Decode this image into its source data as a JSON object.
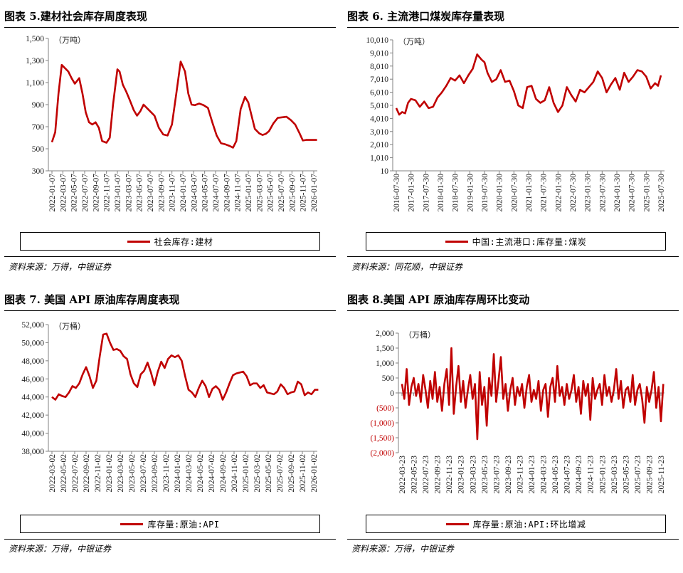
{
  "colors": {
    "series": "#c00000",
    "axis": "#808080",
    "negative": "#c00000"
  },
  "panels": [
    {
      "title": "图表 5.建材社会库存周度表现",
      "source": "资料来源：万得，中银证券",
      "legend": "社会库存:建材",
      "chart_data": {
        "type": "line",
        "unit": "（万吨）",
        "ylim": [
          300,
          1500
        ],
        "yticks": [
          "1,500",
          "1,300",
          "1,100",
          "900",
          "700",
          "500",
          "300"
        ],
        "ytick_values": [
          1500,
          1300,
          1100,
          900,
          700,
          500,
          300
        ],
        "categories": [
          "2022-01-07",
          "2022-03-07",
          "2022-05-07",
          "2022-07-07",
          "2022-09-07",
          "2022-11-07",
          "2023-01-07",
          "2023-03-07",
          "2023-05-07",
          "2023-07-07",
          "2023-09-07",
          "2023-11-07",
          "2024-01-07",
          "2024-03-07",
          "2024-05-07",
          "2024-07-07",
          "2024-09-07",
          "2024-11-07",
          "2025-01-07",
          "2025-03-07",
          "2025-05-07",
          "2025-07-07",
          "2025-09-07",
          "2025-11-07",
          "2026-01-07"
        ],
        "series": [
          {
            "name": "社会库存:建材",
            "x": [
              0,
              0.3,
              0.6,
              0.9,
              1.2,
              1.5,
              1.8,
              2.1,
              2.5,
              2.8,
              3.1,
              3.4,
              3.7,
              4,
              4.3,
              4.6,
              5,
              5.3,
              5.6,
              6,
              6.2,
              6.5,
              6.8,
              7.1,
              7.5,
              7.8,
              8.1,
              8.4,
              8.7,
              9,
              9.4,
              9.8,
              10.2,
              10.6,
              11,
              11.4,
              11.8,
              12.2,
              12.5,
              12.8,
              13.1,
              13.5,
              13.9,
              14.3,
              14.7,
              15.1,
              15.5,
              15.9,
              16.3,
              16.6,
              16.9,
              17.3,
              17.7,
              18,
              18.3,
              18.6,
              19,
              19.3,
              19.6,
              19.9,
              20.3,
              20.7,
              21.1,
              21.5,
              21.9,
              22.3,
              22.7,
              23,
              23.3,
              23.7,
              24,
              24.3
            ],
            "values": [
              560,
              650,
              1000,
              1260,
              1230,
              1200,
              1140,
              1090,
              1140,
              1000,
              830,
              740,
              720,
              740,
              690,
              570,
              555,
              600,
              900,
              1220,
              1200,
              1080,
              1020,
              950,
              850,
              800,
              840,
              900,
              870,
              840,
              800,
              690,
              630,
              620,
              720,
              1000,
              1290,
              1200,
              1000,
              900,
              895,
              910,
              895,
              870,
              740,
              620,
              550,
              540,
              525,
              510,
              570,
              860,
              970,
              920,
              800,
              680,
              640,
              625,
              635,
              660,
              730,
              780,
              785,
              790,
              760,
              720,
              640,
              575,
              580,
              580,
              580,
              580
            ]
          }
        ]
      }
    },
    {
      "title": "图表 6.  主流港口煤炭库存量表现",
      "source": "资料来源：同花顺，中银证券",
      "legend": "中国:主流港口:库存量:煤炭",
      "chart_data": {
        "type": "line",
        "unit": "（万吨）",
        "ylim": [
          10,
          10010
        ],
        "yticks": [
          "10,010",
          "9,010",
          "8,010",
          "7,010",
          "6,010",
          "5,010",
          "4,010",
          "3,010",
          "2,010",
          "1,010",
          "10"
        ],
        "ytick_values": [
          10010,
          9010,
          8010,
          7010,
          6010,
          5010,
          4010,
          3010,
          2010,
          1010,
          10
        ],
        "categories": [
          "2016-07-30",
          "2017-01-30",
          "2017-07-30",
          "2018-01-30",
          "2018-07-30",
          "2019-01-30",
          "2019-07-30",
          "2020-01-30",
          "2020-07-30",
          "2021-01-30",
          "2021-07-30",
          "2022-01-30",
          "2022-07-30",
          "2023-01-30",
          "2023-07-30",
          "2024-01-30",
          "2024-07-30",
          "2025-01-30",
          "2025-07-30"
        ],
        "series": [
          {
            "name": "中国:主流港口:库存量:煤炭",
            "x": [
              0,
              0.2,
              0.4,
              0.6,
              0.8,
              1.0,
              1.3,
              1.6,
              1.9,
              2.2,
              2.5,
              2.8,
              3.1,
              3.4,
              3.7,
              4.0,
              4.3,
              4.6,
              4.9,
              5.2,
              5.5,
              5.8,
              6.0,
              6.2,
              6.5,
              6.8,
              7.1,
              7.4,
              7.7,
              8.0,
              8.3,
              8.6,
              8.9,
              9.2,
              9.5,
              9.8,
              10.1,
              10.4,
              10.7,
              11.0,
              11.3,
              11.6,
              11.9,
              12.2,
              12.5,
              12.8,
              13.1,
              13.4,
              13.7,
              14.0,
              14.3,
              14.6,
              14.9,
              15.2,
              15.5,
              15.8,
              16.1,
              16.4,
              16.7,
              17.0,
              17.3,
              17.6,
              17.8,
              18.0
            ],
            "values": [
              4800,
              4300,
              4500,
              4400,
              5200,
              5500,
              5400,
              4900,
              5300,
              4800,
              4900,
              5600,
              6000,
              6500,
              7100,
              6900,
              7300,
              6700,
              7300,
              7800,
              8900,
              8500,
              8300,
              7500,
              6800,
              7000,
              7700,
              6800,
              6900,
              6100,
              5000,
              4800,
              6400,
              6500,
              5500,
              5200,
              5400,
              6400,
              5200,
              4500,
              5000,
              6400,
              5800,
              5300,
              6200,
              6000,
              6400,
              6800,
              7600,
              7100,
              6000,
              6600,
              7100,
              6200,
              7500,
              6800,
              7200,
              7700,
              7600,
              7200,
              6300,
              6700,
              6500,
              7300
            ]
          }
        ]
      }
    },
    {
      "title": "图表 7.  美国 API 原油库存周度表现",
      "source": "资料来源：万得，中银证券",
      "legend": "库存量:原油:API",
      "chart_data": {
        "type": "line",
        "unit": "（万桶）",
        "ylim": [
          38000,
          52000
        ],
        "yticks": [
          "52,000",
          "50,000",
          "48,000",
          "46,000",
          "44,000",
          "42,000",
          "40,000",
          "38,000"
        ],
        "ytick_values": [
          52000,
          50000,
          48000,
          46000,
          44000,
          42000,
          40000,
          38000
        ],
        "categories": [
          "2022-03-02",
          "2022-05-02",
          "2022-07-02",
          "2022-09-02",
          "2022-11-02",
          "2023-01-02",
          "2023-03-02",
          "2023-05-02",
          "2023-07-02",
          "2023-09-02",
          "2023-11-02",
          "2024-01-02",
          "2024-03-02",
          "2024-05-02",
          "2024-07-02",
          "2024-09-02",
          "2024-11-02",
          "2025-01-02",
          "2025-03-02",
          "2025-05-02",
          "2025-07-02",
          "2025-09-02",
          "2025-11-02",
          "2026-01-02"
        ],
        "series": [
          {
            "name": "库存量:原油:API",
            "x": [
              0,
              0.3,
              0.6,
              0.9,
              1.2,
              1.5,
              1.8,
              2.1,
              2.4,
              2.7,
              3.0,
              3.3,
              3.6,
              3.9,
              4.2,
              4.5,
              4.8,
              5.1,
              5.4,
              5.7,
              6.0,
              6.3,
              6.6,
              6.9,
              7.2,
              7.5,
              7.8,
              8.1,
              8.4,
              8.7,
              9.0,
              9.3,
              9.6,
              9.9,
              10.2,
              10.5,
              10.8,
              11.1,
              11.4,
              11.7,
              12.0,
              12.3,
              12.6,
              12.9,
              13.2,
              13.5,
              13.8,
              14.1,
              14.4,
              14.7,
              15.0,
              15.3,
              15.6,
              15.9,
              16.2,
              16.5,
              16.8,
              17.1,
              17.4,
              17.7,
              18.0,
              18.3,
              18.6,
              18.9,
              19.2,
              19.5,
              19.8,
              20.1,
              20.4,
              20.7,
              21.0,
              21.3,
              21.6,
              21.9,
              22.2,
              22.5,
              22.8,
              23.1,
              23.4
            ],
            "values": [
              44000,
              43700,
              44300,
              44100,
              44000,
              44500,
              45200,
              45000,
              45500,
              46500,
              47300,
              46300,
              45000,
              45800,
              48500,
              50900,
              51000,
              50000,
              49200,
              49300,
              49100,
              48500,
              48200,
              46500,
              45500,
              45100,
              46500,
              46900,
              47800,
              46700,
              45300,
              46800,
              47900,
              47200,
              48200,
              48600,
              48400,
              48600,
              48000,
              46300,
              44800,
              44500,
              44000,
              45000,
              45800,
              45200,
              44000,
              44900,
              45200,
              44800,
              43700,
              44500,
              45500,
              46400,
              46600,
              46700,
              46800,
              46300,
              45300,
              45500,
              45500,
              45000,
              45300,
              44500,
              44400,
              44300,
              44600,
              45400,
              45000,
              44300,
              44500,
              44600,
              45700,
              45400,
              44200,
              44500,
              44300,
              44800,
              44800
            ]
          }
        ]
      }
    },
    {
      "title": "图表 8.美国 API 原油库存周环比变动",
      "source": "资料来源：万得，中银证券",
      "legend": "库存量:原油:API:环比增减",
      "chart_data": {
        "type": "line",
        "unit": "（万桶）",
        "ylim": [
          -2000,
          2000
        ],
        "yticks": [
          "2,000",
          "1,500",
          "1,000",
          "500",
          "0",
          "(500)",
          "(1,000)",
          "(1,500)",
          "(2,000)"
        ],
        "ytick_values": [
          2000,
          1500,
          1000,
          500,
          0,
          -500,
          -1000,
          -1500,
          -2000
        ],
        "categories": [
          "2022-03-23",
          "2022-05-23",
          "2022-07-23",
          "2022-09-23",
          "2022-11-23",
          "2023-01-23",
          "2023-03-23",
          "2023-05-23",
          "2023-07-23",
          "2023-09-23",
          "2023-11-23",
          "2024-01-23",
          "2024-03-23",
          "2024-05-23",
          "2024-07-23",
          "2024-09-23",
          "2024-11-23",
          "2025-01-23",
          "2025-03-23",
          "2025-05-23",
          "2025-07-23",
          "2025-09-23",
          "2025-11-23"
        ],
        "series": [
          {
            "name": "库存量:原油:API:环比增减",
            "x": [
              0,
              0.2,
              0.4,
              0.6,
              0.8,
              1.0,
              1.2,
              1.4,
              1.6,
              1.8,
              2.0,
              2.2,
              2.4,
              2.6,
              2.8,
              3.0,
              3.2,
              3.4,
              3.6,
              3.8,
              4.0,
              4.2,
              4.4,
              4.6,
              4.8,
              5.0,
              5.2,
              5.4,
              5.6,
              5.8,
              6.0,
              6.2,
              6.4,
              6.6,
              6.8,
              7.0,
              7.2,
              7.4,
              7.6,
              7.8,
              8.0,
              8.2,
              8.4,
              8.6,
              8.8,
              9.0,
              9.2,
              9.4,
              9.6,
              9.8,
              10.0,
              10.2,
              10.4,
              10.6,
              10.8,
              11.0,
              11.2,
              11.4,
              11.6,
              11.8,
              12.0,
              12.2,
              12.4,
              12.6,
              12.8,
              13.0,
              13.2,
              13.4,
              13.6,
              13.8,
              14.0,
              14.2,
              14.4,
              14.6,
              14.8,
              15.0,
              15.2,
              15.4,
              15.6,
              15.8,
              16.0,
              16.2,
              16.4,
              16.6,
              16.8,
              17.0,
              17.2,
              17.4,
              17.6,
              17.8,
              18.0,
              18.2,
              18.4,
              18.6,
              18.8,
              19.0,
              19.2,
              19.4,
              19.6,
              19.8,
              20.0,
              20.2,
              20.4,
              20.6,
              20.8,
              21.0,
              21.2,
              21.4,
              21.6,
              21.8,
              22.0,
              22.2
            ],
            "values": [
              300,
              -200,
              800,
              -400,
              200,
              500,
              -100,
              300,
              -300,
              600,
              100,
              -500,
              400,
              -200,
              700,
              -300,
              200,
              -600,
              300,
              800,
              -400,
              1500,
              -700,
              200,
              900,
              -300,
              400,
              -500,
              100,
              600,
              -200,
              300,
              -1550,
              700,
              -400,
              200,
              -1100,
              500,
              -100,
              1300,
              -300,
              400,
              1200,
              -200,
              300,
              -600,
              100,
              500,
              -400,
              200,
              -100,
              300,
              -500,
              200,
              600,
              -300,
              100,
              -200,
              400,
              -600,
              100,
              300,
              -800,
              200,
              500,
              -300,
              900,
              -100,
              200,
              -400,
              300,
              -200,
              100,
              600,
              -300,
              200,
              -700,
              400,
              -100,
              300,
              -900,
              500,
              -200,
              100,
              300,
              -400,
              600,
              -100,
              200,
              -300,
              100,
              800,
              -200,
              400,
              -500,
              100,
              200,
              -300,
              600,
              -400,
              100,
              300,
              -200,
              -1000,
              200,
              -300,
              100,
              700,
              -500,
              200,
              -950,
              300
            ]
          }
        ]
      }
    }
  ]
}
